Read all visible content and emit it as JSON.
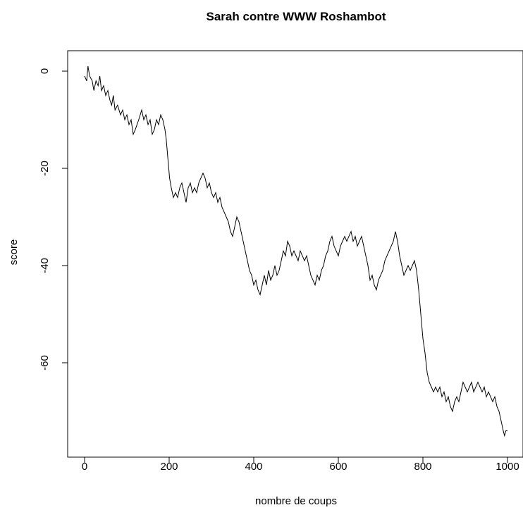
{
  "chart_data": {
    "type": "line",
    "title": "Sarah contre WWW Roshambot",
    "xlabel": "nombre de coups",
    "ylabel": "score",
    "xlim": [
      0,
      1000
    ],
    "ylim": [
      -76,
      1
    ],
    "xticks": [
      0,
      200,
      400,
      600,
      800,
      1000
    ],
    "yticks": [
      0,
      -20,
      -40,
      -60
    ],
    "grid": false,
    "series": [
      {
        "points": [
          [
            0,
            -1
          ],
          [
            5,
            -2
          ],
          [
            8,
            1
          ],
          [
            12,
            -1
          ],
          [
            18,
            -2
          ],
          [
            22,
            -4
          ],
          [
            27,
            -2
          ],
          [
            32,
            -3
          ],
          [
            36,
            -1
          ],
          [
            40,
            -4
          ],
          [
            45,
            -3
          ],
          [
            50,
            -5
          ],
          [
            55,
            -4
          ],
          [
            60,
            -6
          ],
          [
            64,
            -7
          ],
          [
            68,
            -5
          ],
          [
            72,
            -8
          ],
          [
            78,
            -7
          ],
          [
            85,
            -9
          ],
          [
            90,
            -8
          ],
          [
            95,
            -10
          ],
          [
            100,
            -9
          ],
          [
            105,
            -11
          ],
          [
            110,
            -10
          ],
          [
            115,
            -13
          ],
          [
            120,
            -12
          ],
          [
            128,
            -10
          ],
          [
            135,
            -8
          ],
          [
            140,
            -10
          ],
          [
            145,
            -9
          ],
          [
            150,
            -11
          ],
          [
            155,
            -10
          ],
          [
            160,
            -13
          ],
          [
            165,
            -12
          ],
          [
            170,
            -10
          ],
          [
            175,
            -11
          ],
          [
            180,
            -9
          ],
          [
            185,
            -10
          ],
          [
            190,
            -12
          ],
          [
            193,
            -14
          ],
          [
            197,
            -18
          ],
          [
            201,
            -22
          ],
          [
            205,
            -24
          ],
          [
            210,
            -26
          ],
          [
            215,
            -25
          ],
          [
            220,
            -26
          ],
          [
            225,
            -24
          ],
          [
            230,
            -23
          ],
          [
            235,
            -25
          ],
          [
            240,
            -27
          ],
          [
            245,
            -24
          ],
          [
            250,
            -23
          ],
          [
            255,
            -25
          ],
          [
            260,
            -24
          ],
          [
            265,
            -25
          ],
          [
            270,
            -23
          ],
          [
            275,
            -22
          ],
          [
            280,
            -21
          ],
          [
            285,
            -22
          ],
          [
            290,
            -24
          ],
          [
            295,
            -23
          ],
          [
            300,
            -25
          ],
          [
            305,
            -26
          ],
          [
            310,
            -25
          ],
          [
            315,
            -27
          ],
          [
            320,
            -26
          ],
          [
            325,
            -28
          ],
          [
            330,
            -29
          ],
          [
            335,
            -30
          ],
          [
            340,
            -31
          ],
          [
            345,
            -33
          ],
          [
            350,
            -34
          ],
          [
            355,
            -32
          ],
          [
            360,
            -30
          ],
          [
            365,
            -31
          ],
          [
            370,
            -33
          ],
          [
            375,
            -35
          ],
          [
            380,
            -37
          ],
          [
            385,
            -39
          ],
          [
            390,
            -41
          ],
          [
            395,
            -42
          ],
          [
            400,
            -44
          ],
          [
            405,
            -43
          ],
          [
            410,
            -45
          ],
          [
            415,
            -46
          ],
          [
            420,
            -44
          ],
          [
            425,
            -42
          ],
          [
            430,
            -44
          ],
          [
            435,
            -41
          ],
          [
            440,
            -43
          ],
          [
            445,
            -42
          ],
          [
            450,
            -40
          ],
          [
            455,
            -42
          ],
          [
            460,
            -41
          ],
          [
            465,
            -39
          ],
          [
            470,
            -37
          ],
          [
            475,
            -38
          ],
          [
            480,
            -35
          ],
          [
            485,
            -36
          ],
          [
            490,
            -38
          ],
          [
            495,
            -37
          ],
          [
            500,
            -38
          ],
          [
            505,
            -39
          ],
          [
            510,
            -37
          ],
          [
            515,
            -38
          ],
          [
            520,
            -39
          ],
          [
            525,
            -38
          ],
          [
            530,
            -40
          ],
          [
            535,
            -42
          ],
          [
            540,
            -43
          ],
          [
            545,
            -44
          ],
          [
            550,
            -42
          ],
          [
            555,
            -43
          ],
          [
            560,
            -41
          ],
          [
            565,
            -40
          ],
          [
            570,
            -38
          ],
          [
            575,
            -37
          ],
          [
            580,
            -35
          ],
          [
            585,
            -34
          ],
          [
            590,
            -36
          ],
          [
            595,
            -37
          ],
          [
            600,
            -38
          ],
          [
            605,
            -36
          ],
          [
            610,
            -35
          ],
          [
            615,
            -34
          ],
          [
            620,
            -35
          ],
          [
            625,
            -34
          ],
          [
            630,
            -33
          ],
          [
            635,
            -35
          ],
          [
            640,
            -34
          ],
          [
            645,
            -36
          ],
          [
            650,
            -35
          ],
          [
            655,
            -34
          ],
          [
            660,
            -36
          ],
          [
            665,
            -38
          ],
          [
            670,
            -40
          ],
          [
            675,
            -43
          ],
          [
            680,
            -42
          ],
          [
            685,
            -44
          ],
          [
            690,
            -45
          ],
          [
            695,
            -43
          ],
          [
            700,
            -42
          ],
          [
            705,
            -41
          ],
          [
            710,
            -39
          ],
          [
            715,
            -38
          ],
          [
            720,
            -37
          ],
          [
            725,
            -36
          ],
          [
            730,
            -35
          ],
          [
            735,
            -33
          ],
          [
            740,
            -35
          ],
          [
            745,
            -38
          ],
          [
            750,
            -40
          ],
          [
            755,
            -42
          ],
          [
            760,
            -41
          ],
          [
            765,
            -40
          ],
          [
            770,
            -41
          ],
          [
            775,
            -40
          ],
          [
            780,
            -39
          ],
          [
            785,
            -41
          ],
          [
            790,
            -45
          ],
          [
            795,
            -50
          ],
          [
            800,
            -55
          ],
          [
            805,
            -58
          ],
          [
            810,
            -62
          ],
          [
            815,
            -64
          ],
          [
            820,
            -65
          ],
          [
            825,
            -66
          ],
          [
            830,
            -65
          ],
          [
            835,
            -66
          ],
          [
            840,
            -65
          ],
          [
            845,
            -67
          ],
          [
            850,
            -66
          ],
          [
            855,
            -68
          ],
          [
            860,
            -67
          ],
          [
            865,
            -69
          ],
          [
            870,
            -70
          ],
          [
            875,
            -68
          ],
          [
            880,
            -67
          ],
          [
            885,
            -68
          ],
          [
            890,
            -66
          ],
          [
            895,
            -64
          ],
          [
            900,
            -65
          ],
          [
            905,
            -66
          ],
          [
            910,
            -65
          ],
          [
            915,
            -64
          ],
          [
            920,
            -66
          ],
          [
            925,
            -65
          ],
          [
            930,
            -64
          ],
          [
            935,
            -65
          ],
          [
            940,
            -66
          ],
          [
            945,
            -65
          ],
          [
            950,
            -67
          ],
          [
            955,
            -66
          ],
          [
            960,
            -67
          ],
          [
            965,
            -68
          ],
          [
            970,
            -67
          ],
          [
            975,
            -69
          ],
          [
            980,
            -70
          ],
          [
            985,
            -72
          ],
          [
            990,
            -74
          ],
          [
            993,
            -75
          ],
          [
            996,
            -74
          ],
          [
            1000,
            -74
          ]
        ]
      }
    ]
  }
}
